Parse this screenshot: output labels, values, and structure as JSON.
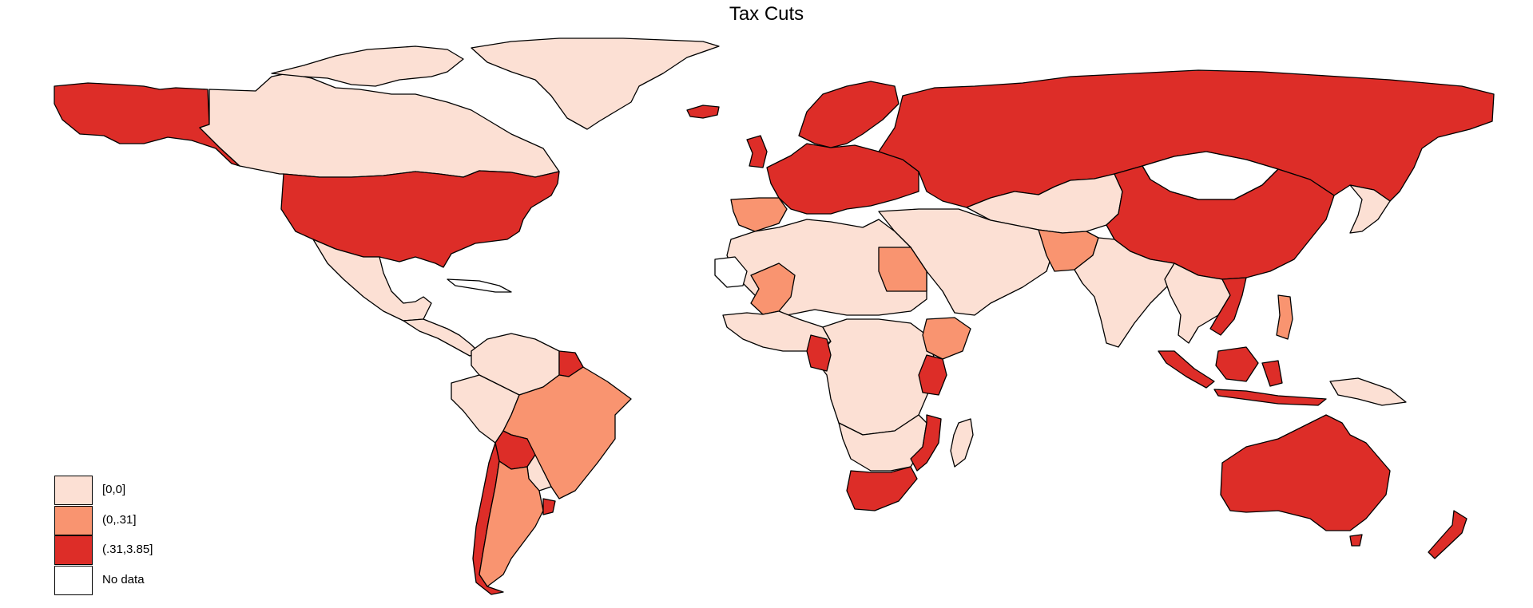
{
  "title": "Tax Cuts",
  "colors": {
    "zero": "#fce0d4",
    "low": "#f99470",
    "high": "#dd2d28",
    "nodata": "#ffffff",
    "border": "#000000"
  },
  "legend": [
    {
      "label": "[0,0]",
      "color_key": "zero"
    },
    {
      "label": "(0,.31]",
      "color_key": "low"
    },
    {
      "label": "(.31,3.85]",
      "color_key": "high"
    },
    {
      "label": "No data",
      "color_key": "nodata"
    }
  ],
  "regions": [
    {
      "name": "Alaska (USA)",
      "category": "high"
    },
    {
      "name": "Canada",
      "category": "zero"
    },
    {
      "name": "Greenland",
      "category": "zero"
    },
    {
      "name": "Iceland",
      "category": "high"
    },
    {
      "name": "United States",
      "category": "high"
    },
    {
      "name": "Mexico",
      "category": "zero"
    },
    {
      "name": "Central America",
      "category": "zero"
    },
    {
      "name": "Caribbean",
      "category": "nodata"
    },
    {
      "name": "Colombia / Venezuela",
      "category": "zero"
    },
    {
      "name": "Guyana / Suriname",
      "category": "high"
    },
    {
      "name": "Ecuador / Peru",
      "category": "zero"
    },
    {
      "name": "Brazil",
      "category": "low"
    },
    {
      "name": "Bolivia",
      "category": "high"
    },
    {
      "name": "Paraguay",
      "category": "zero"
    },
    {
      "name": "Chile",
      "category": "high"
    },
    {
      "name": "Argentina",
      "category": "low"
    },
    {
      "name": "Uruguay",
      "category": "high"
    },
    {
      "name": "Western Europe",
      "category": "high"
    },
    {
      "name": "Iberia",
      "category": "low"
    },
    {
      "name": "Scandinavia",
      "category": "high"
    },
    {
      "name": "Russia",
      "category": "high"
    },
    {
      "name": "Kazakhstan / Central Asia",
      "category": "zero"
    },
    {
      "name": "Mongolia",
      "category": "nodata"
    },
    {
      "name": "China",
      "category": "high"
    },
    {
      "name": "Middle East",
      "category": "zero"
    },
    {
      "name": "Pakistan",
      "category": "low"
    },
    {
      "name": "India",
      "category": "zero"
    },
    {
      "name": "Southeast Asia",
      "category": "zero"
    },
    {
      "name": "Vietnam",
      "category": "high"
    },
    {
      "name": "Indonesia",
      "category": "high"
    },
    {
      "name": "Philippines",
      "category": "low"
    },
    {
      "name": "Japan",
      "category": "zero"
    },
    {
      "name": "North Africa",
      "category": "zero"
    },
    {
      "name": "Western Sahara",
      "category": "nodata"
    },
    {
      "name": "Mali",
      "category": "low"
    },
    {
      "name": "Egypt",
      "category": "low"
    },
    {
      "name": "West Africa",
      "category": "zero"
    },
    {
      "name": "Central Africa",
      "category": "zero"
    },
    {
      "name": "Cameroon",
      "category": "high"
    },
    {
      "name": "Ethiopia",
      "category": "low"
    },
    {
      "name": "Kenya",
      "category": "high"
    },
    {
      "name": "Southern Africa",
      "category": "zero"
    },
    {
      "name": "Mozambique",
      "category": "high"
    },
    {
      "name": "South Africa",
      "category": "high"
    },
    {
      "name": "Madagascar",
      "category": "zero"
    },
    {
      "name": "Australia",
      "category": "high"
    },
    {
      "name": "New Zealand",
      "category": "high"
    },
    {
      "name": "Papua New Guinea",
      "category": "zero"
    }
  ]
}
